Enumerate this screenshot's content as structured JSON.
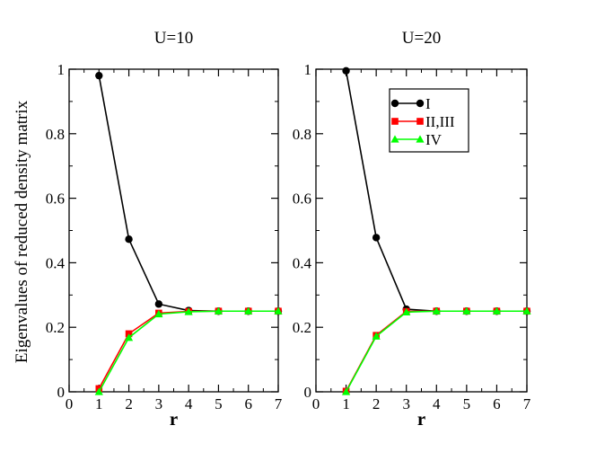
{
  "figure": {
    "ylabel": "Eigenvalues of reduced density matrix",
    "xlabel": "r"
  },
  "legend": {
    "placement": "top-right of right panel",
    "entries": [
      {
        "label": "I",
        "color": "#000000",
        "marker": "circle"
      },
      {
        "label": "II,III",
        "color": "#ff0000",
        "marker": "square"
      },
      {
        "label": "IV",
        "color": "#00ff00",
        "marker": "triangle"
      }
    ]
  },
  "chart_data": [
    {
      "type": "line",
      "title": "U=10",
      "xlabel": "r",
      "ylabel": "Eigenvalues of reduced density matrix",
      "xlim": [
        0,
        7
      ],
      "ylim": [
        0,
        1
      ],
      "xticks": [
        0,
        1,
        2,
        3,
        4,
        5,
        6,
        7
      ],
      "yticks": [
        0,
        0.2,
        0.4,
        0.6,
        0.8,
        1
      ],
      "ytick_labels": [
        "0",
        "0.2",
        "0.4",
        "0.6",
        "0.8",
        "1"
      ],
      "grid": false,
      "x": [
        1,
        2,
        3,
        4,
        5,
        6,
        7
      ],
      "series": [
        {
          "name": "I",
          "color": "#000000",
          "marker": "circle",
          "values": [
            0.98,
            0.473,
            0.272,
            0.252,
            0.25,
            0.25,
            0.25
          ]
        },
        {
          "name": "II,III",
          "color": "#ff0000",
          "marker": "square",
          "values": [
            0.01,
            0.18,
            0.244,
            0.249,
            0.25,
            0.25,
            0.25
          ]
        },
        {
          "name": "IV",
          "color": "#00ff00",
          "marker": "triangle",
          "values": [
            0.0,
            0.168,
            0.241,
            0.248,
            0.25,
            0.25,
            0.25
          ]
        }
      ]
    },
    {
      "type": "line",
      "title": "U=20",
      "xlabel": "r",
      "ylabel": "",
      "xlim": [
        0,
        7
      ],
      "ylim": [
        0,
        1
      ],
      "xticks": [
        0,
        1,
        2,
        3,
        4,
        5,
        6,
        7
      ],
      "yticks": [
        0,
        0.2,
        0.4,
        0.6,
        0.8,
        1
      ],
      "ytick_labels": [
        "0",
        "0.2",
        "0.4",
        "0.6",
        "0.8",
        "1"
      ],
      "grid": false,
      "x": [
        1,
        2,
        3,
        4,
        5,
        6,
        7
      ],
      "series": [
        {
          "name": "I",
          "color": "#000000",
          "marker": "circle",
          "values": [
            0.995,
            0.478,
            0.256,
            0.25,
            0.25,
            0.25,
            0.25
          ]
        },
        {
          "name": "II,III",
          "color": "#ff0000",
          "marker": "square",
          "values": [
            0.002,
            0.175,
            0.249,
            0.25,
            0.25,
            0.25,
            0.25
          ]
        },
        {
          "name": "IV",
          "color": "#00ff00",
          "marker": "triangle",
          "values": [
            0.0,
            0.172,
            0.247,
            0.25,
            0.25,
            0.25,
            0.25
          ]
        }
      ]
    }
  ]
}
